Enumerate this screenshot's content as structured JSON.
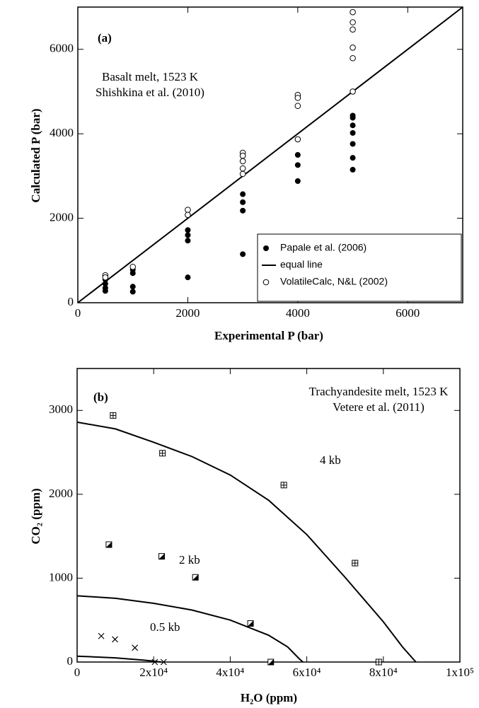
{
  "chart_data": [
    {
      "type": "scatter",
      "annotations": [
        "(a)",
        "Basalt melt, 1523 K",
        "Shishkina et al. (2010)"
      ],
      "xlabel": "Experimental P (bar)",
      "ylabel": "Calculated P (bar)",
      "xlim": [
        0,
        7000
      ],
      "ylim": [
        0,
        7000
      ],
      "xticks": [
        0,
        2000,
        4000,
        6000
      ],
      "yticks": [
        0,
        2000,
        4000,
        6000
      ],
      "legend": "lower right",
      "series": [
        {
          "name": "Papale et al. (2006)",
          "color": "#000000",
          "marker": "filled",
          "x": [
            500,
            500,
            500,
            500,
            1000,
            1000,
            1000,
            1000,
            2000,
            2000,
            2000,
            2000,
            3000,
            3000,
            3000,
            3000,
            4000,
            4000,
            4000,
            5000,
            5000,
            5000,
            5000,
            5000,
            5000,
            5000
          ],
          "values": [
            550,
            450,
            350,
            280,
            780,
            700,
            380,
            260,
            1720,
            1600,
            1470,
            600,
            2570,
            2380,
            2180,
            1150,
            3500,
            3260,
            2880,
            4430,
            4380,
            4200,
            4020,
            3760,
            3430,
            3150
          ]
        },
        {
          "name": "equal line",
          "color": "#000000",
          "mode": "line",
          "x": [
            0,
            7000
          ],
          "values": [
            0,
            7000
          ]
        },
        {
          "name": "VolatileCalc, N&L (2002)",
          "color": "#000000",
          "marker": "open",
          "x": [
            500,
            500,
            1000,
            2000,
            2000,
            3000,
            3000,
            3000,
            3000,
            3000,
            4000,
            4000,
            4000,
            4000,
            5000,
            5000,
            5000,
            5000,
            5000,
            5000
          ],
          "values": [
            650,
            600,
            850,
            2200,
            2080,
            3550,
            3480,
            3350,
            3180,
            3050,
            4920,
            4850,
            4660,
            3870,
            6880,
            6640,
            6470,
            6040,
            5790,
            5000
          ]
        }
      ]
    },
    {
      "type": "scatter",
      "annotations": [
        "(b)",
        "Trachyandesite melt, 1523 K",
        "Vetere et al. (2011)"
      ],
      "xlabel": "H₂O (ppm)",
      "ylabel": "CO₂ (ppm)",
      "xlim": [
        0,
        100000
      ],
      "ylim": [
        0,
        3500
      ],
      "xticks": [
        0,
        {
          "value": 20000,
          "label": "2x10⁴"
        },
        {
          "value": 40000,
          "label": "4x10⁴"
        },
        {
          "value": 60000,
          "label": "6x10⁴"
        },
        {
          "value": 80000,
          "label": "8x10⁴"
        },
        {
          "value": 100000,
          "label": "1x10⁵"
        }
      ],
      "yticks": [
        0,
        1000,
        2000,
        3000
      ],
      "series": [
        {
          "name": "4 kb",
          "color": "#000000",
          "mode": "line",
          "x": [
            0,
            10000,
            20000,
            30000,
            40000,
            50000,
            60000,
            70000,
            80000,
            85000,
            88500
          ],
          "values": [
            2860,
            2780,
            2620,
            2450,
            2230,
            1930,
            1520,
            1010,
            480,
            180,
            0
          ]
        },
        {
          "name": "2 kb",
          "color": "#000000",
          "mode": "line",
          "x": [
            0,
            10000,
            20000,
            30000,
            40000,
            50000,
            55000,
            58000,
            59000
          ],
          "values": [
            790,
            760,
            700,
            620,
            500,
            320,
            180,
            40,
            0
          ]
        },
        {
          "name": "0.5 kb",
          "color": "#000000",
          "mode": "line",
          "x": [
            0,
            10000,
            18000,
            22000
          ],
          "values": [
            70,
            50,
            20,
            0
          ]
        },
        {
          "color": "#000000",
          "marker": "boxplus",
          "x": [
            9400,
            22300,
            54000,
            72600,
            78800
          ],
          "values": [
            2940,
            2490,
            2110,
            1180,
            0
          ]
        },
        {
          "color": "#000000",
          "marker": "halfsquare",
          "x": [
            8300,
            22100,
            30900,
            45300,
            50600
          ],
          "values": [
            1400,
            1260,
            1010,
            460,
            0
          ]
        },
        {
          "color": "#000000",
          "marker": "cross",
          "x": [
            6300,
            9900,
            15100,
            20300,
            22600
          ],
          "values": [
            310,
            270,
            170,
            0,
            0
          ]
        }
      ]
    }
  ]
}
